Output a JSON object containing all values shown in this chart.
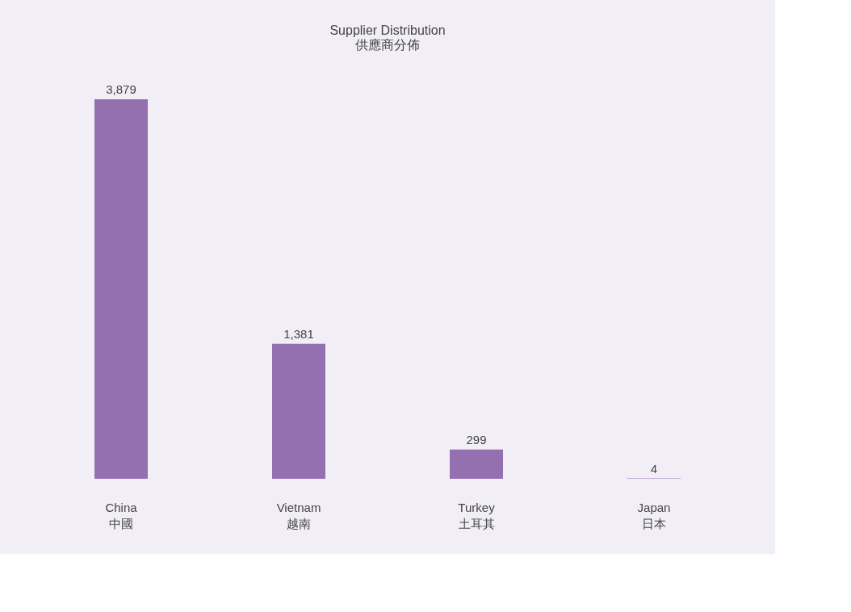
{
  "chart_data": {
    "type": "bar",
    "title": "Supplier Distribution\n供應商分佈",
    "categories": [
      "China\n中國",
      "Vietnam\n越南",
      "Turkey\n土耳其",
      "Japan\n日本"
    ],
    "values": [
      3879,
      1381,
      299,
      4
    ],
    "value_labels": [
      "3,879",
      "1,381",
      "299",
      "4"
    ],
    "color": "#9570b0"
  }
}
